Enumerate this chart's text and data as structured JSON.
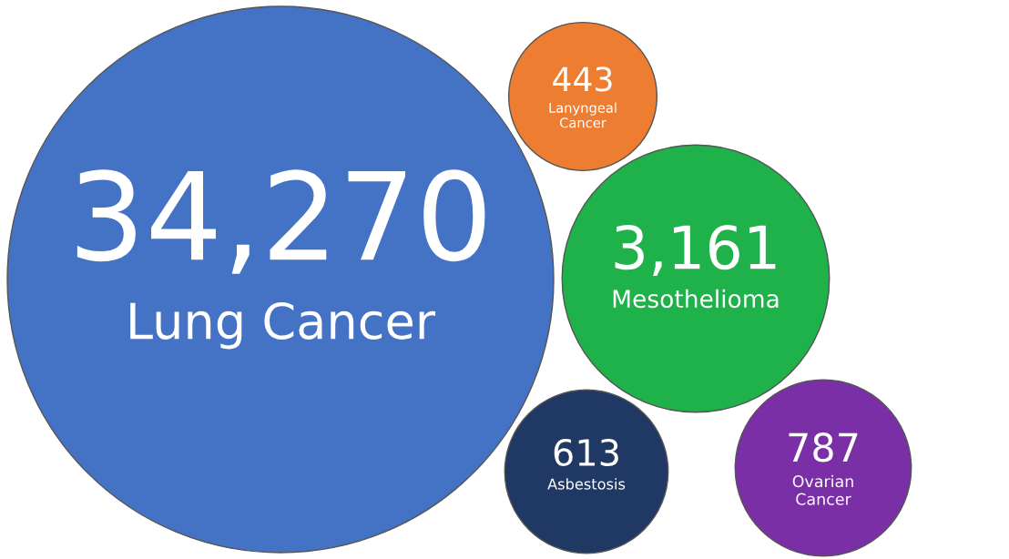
{
  "chart_data": {
    "type": "other",
    "categories": [
      "Lung Cancer",
      "Mesothelioma",
      "Ovarian Cancer",
      "Asbestosis",
      "Lanyngeal Cancer"
    ],
    "values": [
      34270,
      3161,
      787,
      613,
      443
    ],
    "value_labels": [
      "34,270",
      "3,161",
      "787",
      "613",
      "443"
    ],
    "colors": [
      "#4472c4",
      "#1fb24a",
      "#7a2fa6",
      "#1f3864",
      "#ed7d31"
    ]
  }
}
